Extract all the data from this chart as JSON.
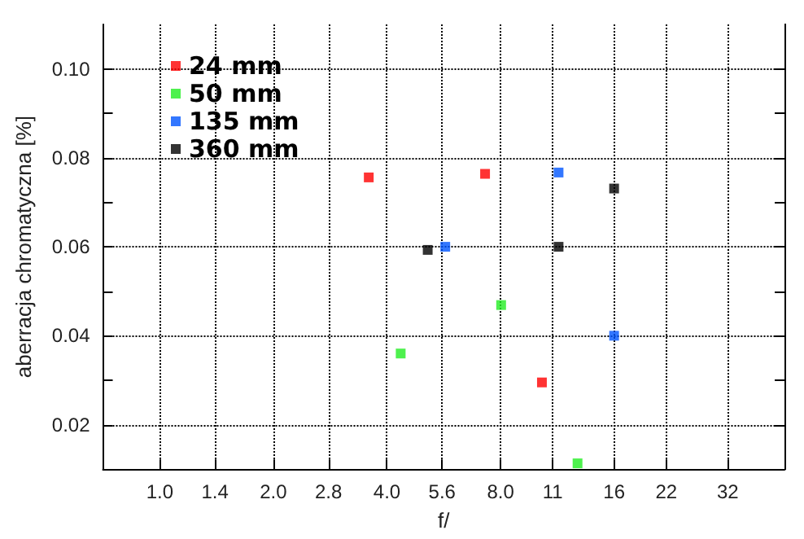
{
  "chart_data": {
    "type": "scatter",
    "xlabel": "f/",
    "ylabel": "aberracja chromatyczna [%]",
    "log": "x",
    "grid": true,
    "legend": "top left",
    "marker": "square",
    "xlim": [
      0.707,
      45.25
    ],
    "ylim": [
      0.01,
      0.11
    ],
    "xticks": [
      {
        "value": 1,
        "label": "1.0"
      },
      {
        "value": 1.4,
        "label": "1.4"
      },
      {
        "value": 2,
        "label": "2.0"
      },
      {
        "value": 2.8,
        "label": "2.8"
      },
      {
        "value": 4,
        "label": "4.0"
      },
      {
        "value": 5.6,
        "label": "5.6"
      },
      {
        "value": 8,
        "label": "8.0"
      },
      11,
      16,
      22,
      32
    ],
    "yticks": [
      {
        "value": 0.02,
        "label": "0.02"
      },
      {
        "value": 0.03,
        "label": null
      },
      {
        "value": 0.04,
        "label": "0.04"
      },
      {
        "value": 0.05,
        "label": null
      },
      {
        "value": 0.06,
        "label": "0.06"
      },
      {
        "value": 0.07,
        "label": null
      },
      {
        "value": 0.08,
        "label": "0.08"
      },
      {
        "value": 0.09,
        "label": null
      },
      {
        "value": 0.1,
        "label": "0.10"
      }
    ],
    "series": [
      {
        "name": "24 mm",
        "color": "#ff0000",
        "x": [
          3.58,
          7.28,
          10.3
        ],
        "values": [
          0.0756,
          0.0764,
          0.0295
        ]
      },
      {
        "name": "50 mm",
        "color": "#22ee22",
        "x": [
          4.35,
          8.03,
          12.8
        ],
        "values": [
          0.036,
          0.0469,
          0.0113
        ]
      },
      {
        "name": "135 mm",
        "color": "#0055ff",
        "x": [
          5.71,
          11.4,
          16
        ],
        "values": [
          0.06,
          0.0767,
          0.04
        ]
      },
      {
        "name": "360 mm",
        "color": "#000000",
        "x": [
          5.13,
          11.4,
          16
        ],
        "values": [
          0.0593,
          0.06,
          0.0731
        ]
      }
    ]
  }
}
